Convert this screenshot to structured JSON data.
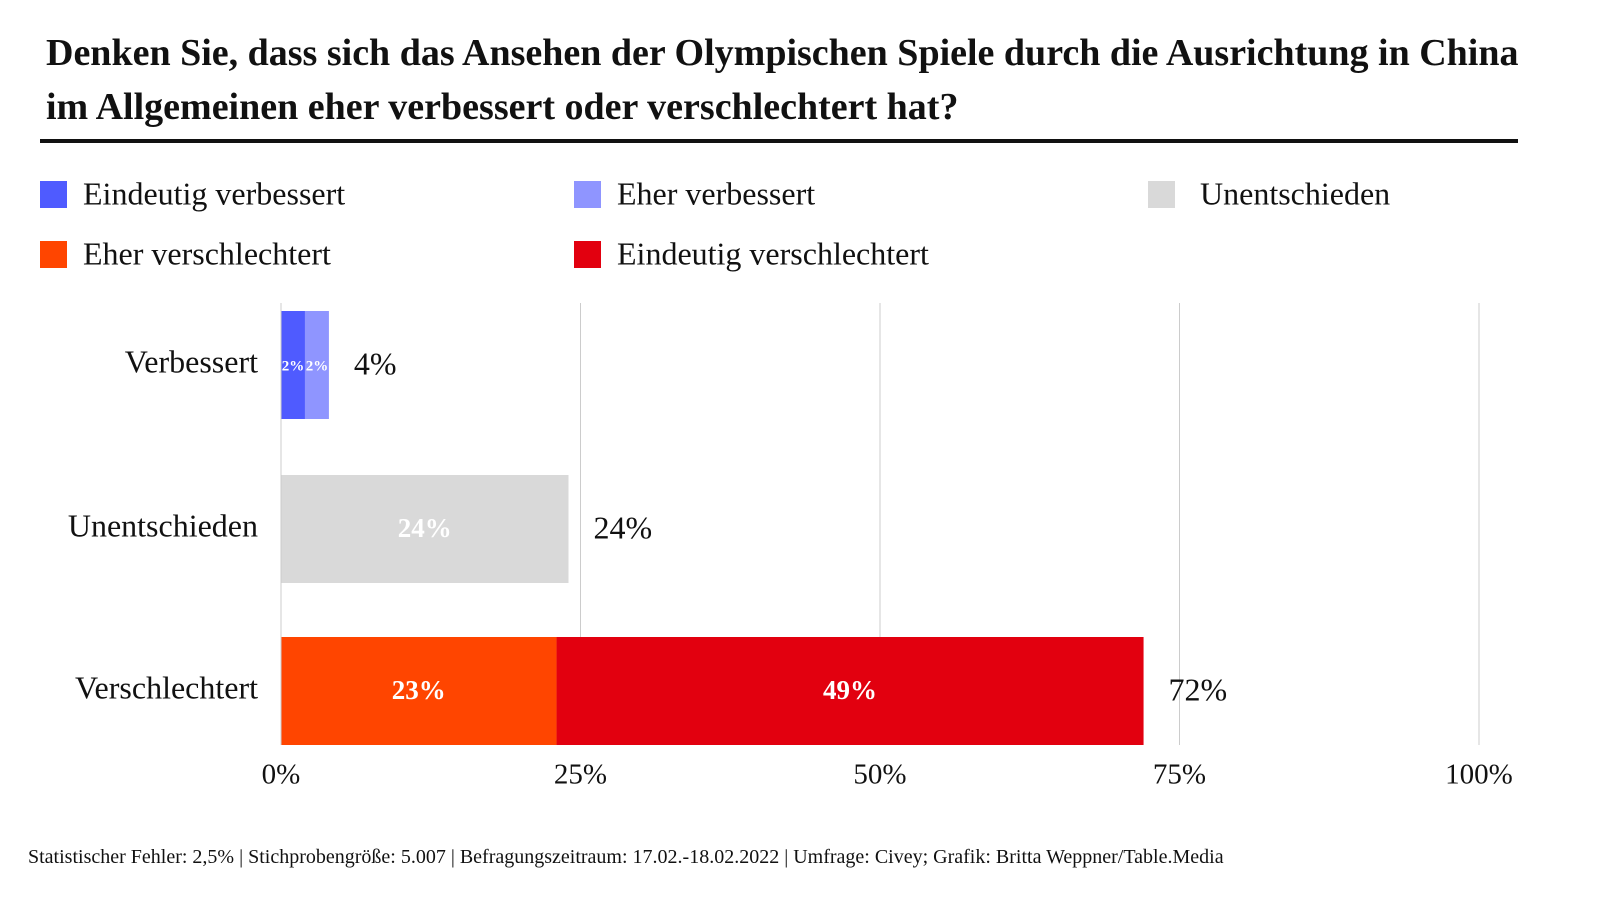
{
  "chart_data": {
    "type": "stacked-bar-horizontal",
    "title": "Denken Sie, dass sich das Ansehen der Olympischen Spiele durch die Ausrichtung in China im Allgemeinen eher verbessert oder verschlechtert hat?",
    "categories": [
      "Verbessert",
      "Unentschieden",
      "Verschlechtert"
    ],
    "series": [
      {
        "name": "Eindeutig verbessert",
        "color": "#4f5bff",
        "values": [
          2,
          null,
          null
        ],
        "value_labels": [
          "2%",
          null,
          null
        ]
      },
      {
        "name": "Eher verbessert",
        "color": "#8f95ff",
        "values": [
          2,
          null,
          null
        ],
        "value_labels": [
          "2%",
          null,
          null
        ]
      },
      {
        "name": "Unentschieden",
        "color": "#d9d9d9",
        "values": [
          null,
          24,
          null
        ],
        "value_labels": [
          null,
          "24%",
          null
        ]
      },
      {
        "name": "Eher verschlechtert",
        "color": "#ff4500",
        "values": [
          null,
          null,
          23
        ],
        "value_labels": [
          null,
          null,
          "23%"
        ]
      },
      {
        "name": "Eindeutig verschlechtert",
        "color": "#e2000f",
        "values": [
          null,
          null,
          49
        ],
        "value_labels": [
          null,
          null,
          "49%"
        ]
      }
    ],
    "totals": [
      4,
      24,
      72
    ],
    "total_labels": [
      "4%",
      "24%",
      "72%"
    ],
    "xlim": [
      0,
      100
    ],
    "xticks": [
      {
        "value": 0,
        "label": "0%"
      },
      {
        "value": 25,
        "label": "25%"
      },
      {
        "value": 50,
        "label": "50%"
      },
      {
        "value": 75,
        "label": "75%"
      },
      {
        "value": 100,
        "label": "100%"
      }
    ],
    "grid": true,
    "source": "Statistischer Fehler: 2,5% | Stichprobengröße: 5.007 | Befragungszeitraum: 17.02.-18.02.2022 | Umfrage: Civey; Grafik: Britta Weppner/Table.Media"
  }
}
